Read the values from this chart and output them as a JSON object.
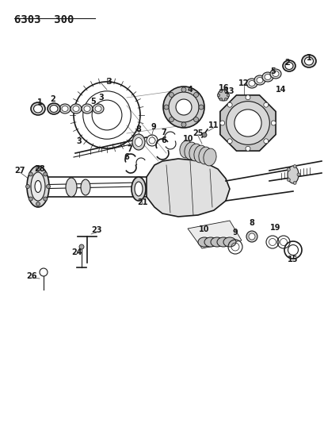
{
  "title": "6303  300",
  "bg_color": "#ffffff",
  "line_color": "#1a1a1a",
  "title_fontsize": 10,
  "fig_width": 4.1,
  "fig_height": 5.33,
  "dpi": 100,
  "label_fontsize": 7,
  "label_bold": true
}
